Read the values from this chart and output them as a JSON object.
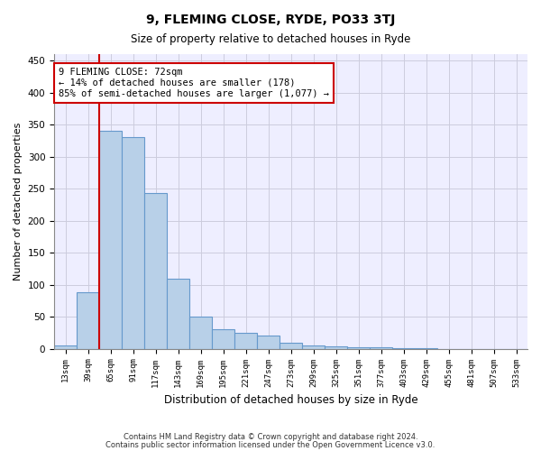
{
  "title": "9, FLEMING CLOSE, RYDE, PO33 3TJ",
  "subtitle": "Size of property relative to detached houses in Ryde",
  "xlabel": "Distribution of detached houses by size in Ryde",
  "ylabel": "Number of detached properties",
  "footer1": "Contains HM Land Registry data © Crown copyright and database right 2024.",
  "footer2": "Contains public sector information licensed under the Open Government Licence v3.0.",
  "bar_color": "#b8d0e8",
  "bar_edge_color": "#6699cc",
  "annotation_box_color": "#cc0000",
  "vline_color": "#cc0000",
  "categories": [
    "13sqm",
    "39sqm",
    "65sqm",
    "91sqm",
    "117sqm",
    "143sqm",
    "169sqm",
    "195sqm",
    "221sqm",
    "247sqm",
    "273sqm",
    "299sqm",
    "325sqm",
    "351sqm",
    "377sqm",
    "403sqm",
    "429sqm",
    "455sqm",
    "481sqm",
    "507sqm",
    "533sqm"
  ],
  "values": [
    5,
    88,
    340,
    330,
    243,
    110,
    50,
    30,
    25,
    20,
    9,
    5,
    4,
    3,
    2,
    1,
    1,
    0,
    0,
    0,
    0
  ],
  "property_label": "9 FLEMING CLOSE: 72sqm",
  "annotation_line1": "← 14% of detached houses are smaller (178)",
  "annotation_line2": "85% of semi-detached houses are larger (1,077) →",
  "vline_x_index": 1.5,
  "ylim": [
    0,
    460
  ],
  "yticks": [
    0,
    50,
    100,
    150,
    200,
    250,
    300,
    350,
    400,
    450
  ],
  "background_color": "#eeeeff",
  "grid_color": "#ccccdd",
  "fig_width": 6.0,
  "fig_height": 5.0,
  "dpi": 100
}
